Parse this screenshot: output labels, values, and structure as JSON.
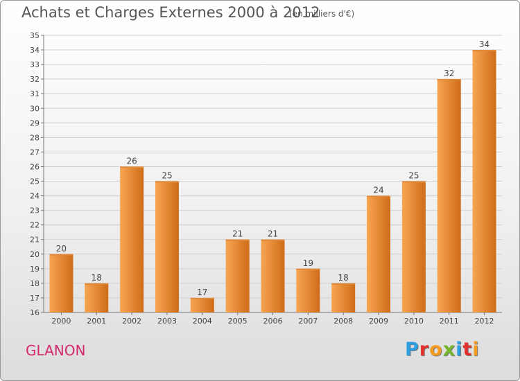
{
  "title": "Achats et Charges Externes 2000 à 2012",
  "subtitle": "(en milliers d'€)",
  "commune": "GLANON",
  "logo_text": "Proxiti",
  "logo_colors": [
    "#2e9fe0",
    "#e2312d",
    "#f39c1f",
    "#74b52c",
    "#2e9fe0",
    "#e2312d",
    "#f39c1f"
  ],
  "colors": {
    "bar_light": "#f7a552",
    "bar_dark": "#cf6c18",
    "commune": "#d2286c"
  },
  "chart_data": {
    "type": "bar",
    "title": "Achats et Charges Externes 2000 à 2012",
    "subtitle": "(en milliers d'€)",
    "categories": [
      "2000",
      "2001",
      "2002",
      "2003",
      "2004",
      "2005",
      "2006",
      "2007",
      "2008",
      "2009",
      "2010",
      "2011",
      "2012"
    ],
    "values": [
      20,
      18,
      26,
      25,
      17,
      21,
      21,
      19,
      18,
      24,
      25,
      32,
      34
    ],
    "ylim": [
      16,
      35
    ],
    "yticks": [
      16,
      17,
      18,
      19,
      20,
      21,
      22,
      23,
      24,
      25,
      26,
      27,
      28,
      29,
      30,
      31,
      32,
      33,
      34,
      35
    ],
    "grid": true,
    "xlabel": "",
    "ylabel": ""
  }
}
